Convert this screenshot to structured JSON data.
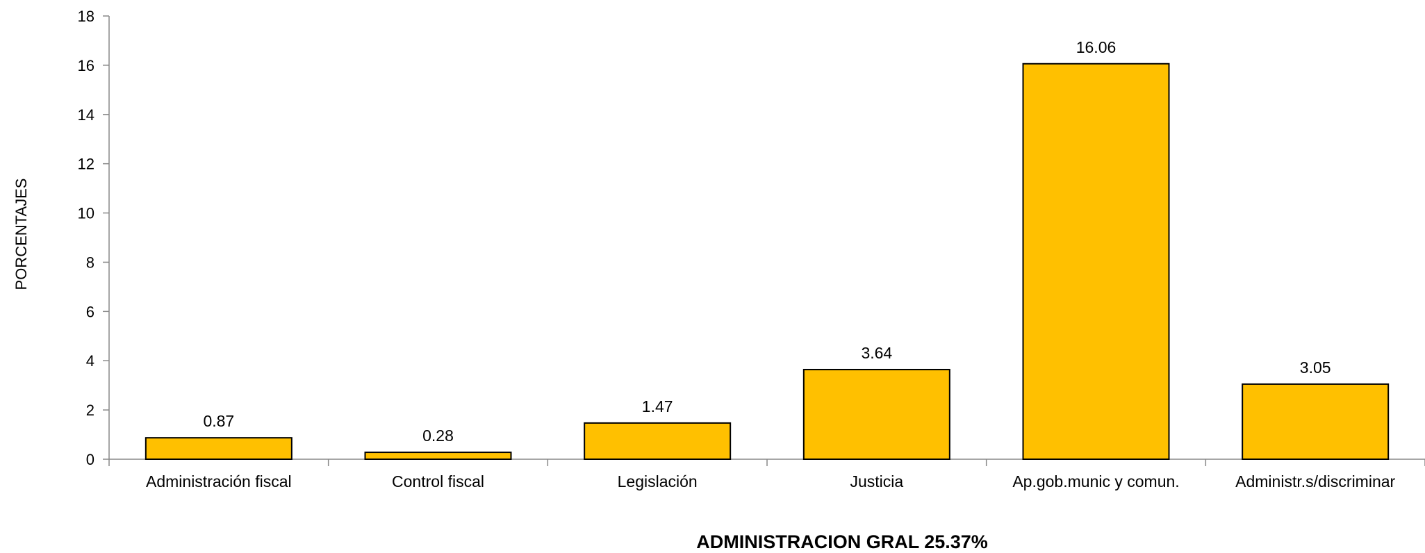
{
  "chart_data": {
    "type": "bar",
    "categories": [
      "Administración fiscal",
      "Control fiscal",
      "Legislación",
      "Justicia",
      "Ap.gob.munic y comun.",
      "Administr.s/discriminar"
    ],
    "values": [
      0.87,
      0.28,
      1.47,
      3.64,
      16.06,
      3.05
    ],
    "data_labels": [
      "0.87",
      "0.28",
      "1.47",
      "3.64",
      "16.06",
      "3.05"
    ],
    "title": "",
    "xlabel": "ADMINISTRACION GRAL 25.37%",
    "ylabel": "PORCENTAJES",
    "ylim": [
      0,
      18
    ],
    "yticks": [
      0,
      2,
      4,
      6,
      8,
      10,
      12,
      14,
      16,
      18
    ],
    "grid": false,
    "legend": "none",
    "bar_color": "#FFC000",
    "bar_edge_color": "#000000"
  }
}
